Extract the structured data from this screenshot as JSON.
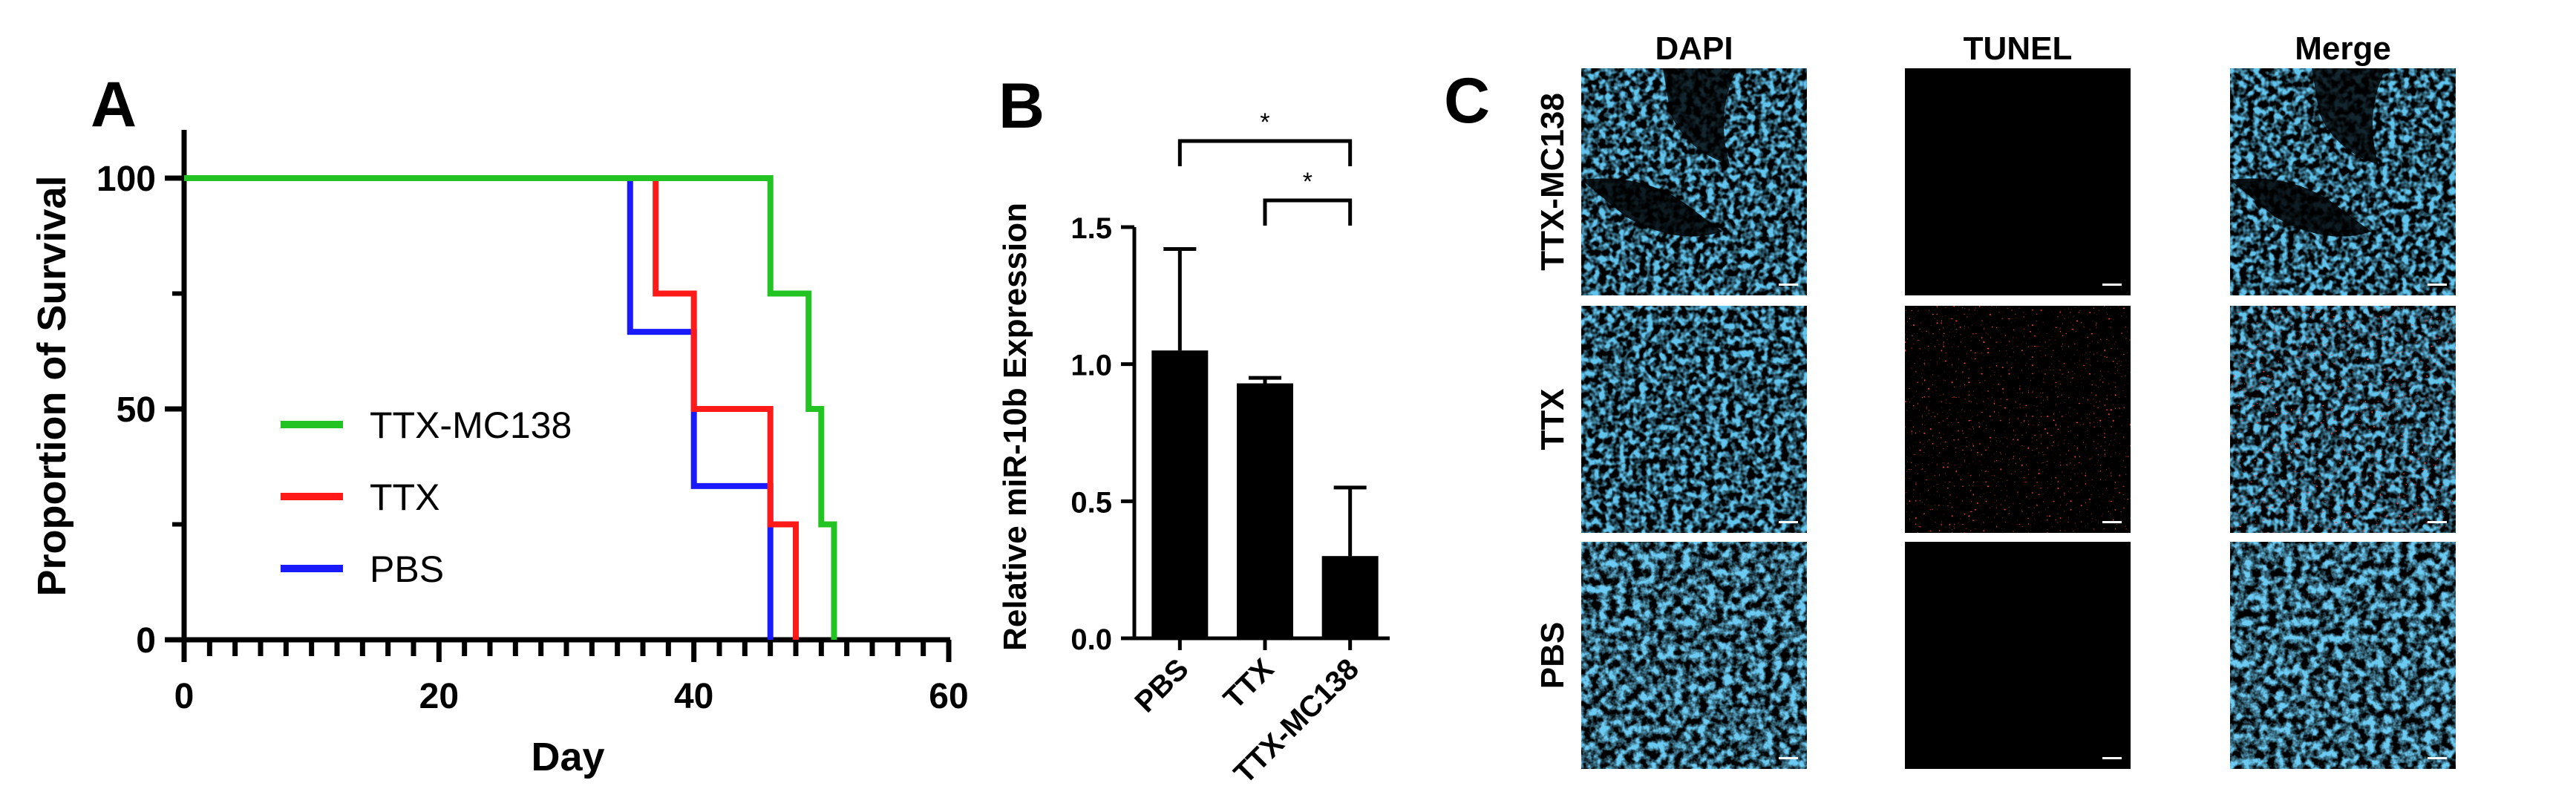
{
  "panels": {
    "A": "A",
    "B": "B",
    "C": "C"
  },
  "chart_data": [
    {
      "panel": "A",
      "type": "line",
      "step": true,
      "xlabel": "Day",
      "ylabel": "Proportion of Survival",
      "xlim": [
        0,
        60
      ],
      "ylim": [
        0,
        100
      ],
      "xticks": [
        "0",
        "20",
        "40",
        "60"
      ],
      "yticks": [
        "0",
        "50",
        "100"
      ],
      "grid": false,
      "legend_position": "center-left",
      "series": [
        {
          "name": "TTX-MC138",
          "color": "#22c322",
          "points": [
            [
              0,
              100
            ],
            [
              46,
              100
            ],
            [
              46,
              75
            ],
            [
              49,
              75
            ],
            [
              49,
              50
            ],
            [
              50,
              50
            ],
            [
              50,
              25
            ],
            [
              51,
              25
            ],
            [
              51,
              0
            ]
          ]
        },
        {
          "name": "TTX",
          "color": "#ff1a1a",
          "points": [
            [
              0,
              100
            ],
            [
              37,
              100
            ],
            [
              37,
              75
            ],
            [
              40,
              75
            ],
            [
              40,
              50
            ],
            [
              46,
              50
            ],
            [
              46,
              25
            ],
            [
              48,
              25
            ],
            [
              48,
              0
            ]
          ]
        },
        {
          "name": "PBS",
          "color": "#1a1aff",
          "points": [
            [
              0,
              100
            ],
            [
              35,
              100
            ],
            [
              35,
              66.7
            ],
            [
              40,
              66.7
            ],
            [
              40,
              33.3
            ],
            [
              46,
              33.3
            ],
            [
              46,
              0
            ]
          ]
        }
      ]
    },
    {
      "panel": "B",
      "type": "bar",
      "ylabel": "Relative miR-10b Expression",
      "categories": [
        "PBS",
        "TTX",
        "TTX-MC138"
      ],
      "values": [
        1.05,
        0.93,
        0.3
      ],
      "errors": [
        0.37,
        0.02,
        0.25
      ],
      "ylim": [
        0,
        1.5
      ],
      "yticks": [
        "0.0",
        "0.5",
        "1.0",
        "1.5"
      ],
      "bar_color": "#000000",
      "significance": [
        {
          "from": "PBS",
          "to": "TTX-MC138",
          "label": "*"
        },
        {
          "from": "TTX",
          "to": "TTX-MC138",
          "label": "*"
        }
      ]
    }
  ],
  "panel_c": {
    "columns": [
      "DAPI",
      "TUNEL",
      "Merge"
    ],
    "rows": [
      "TTX-MC138",
      "TTX",
      "PBS"
    ]
  }
}
